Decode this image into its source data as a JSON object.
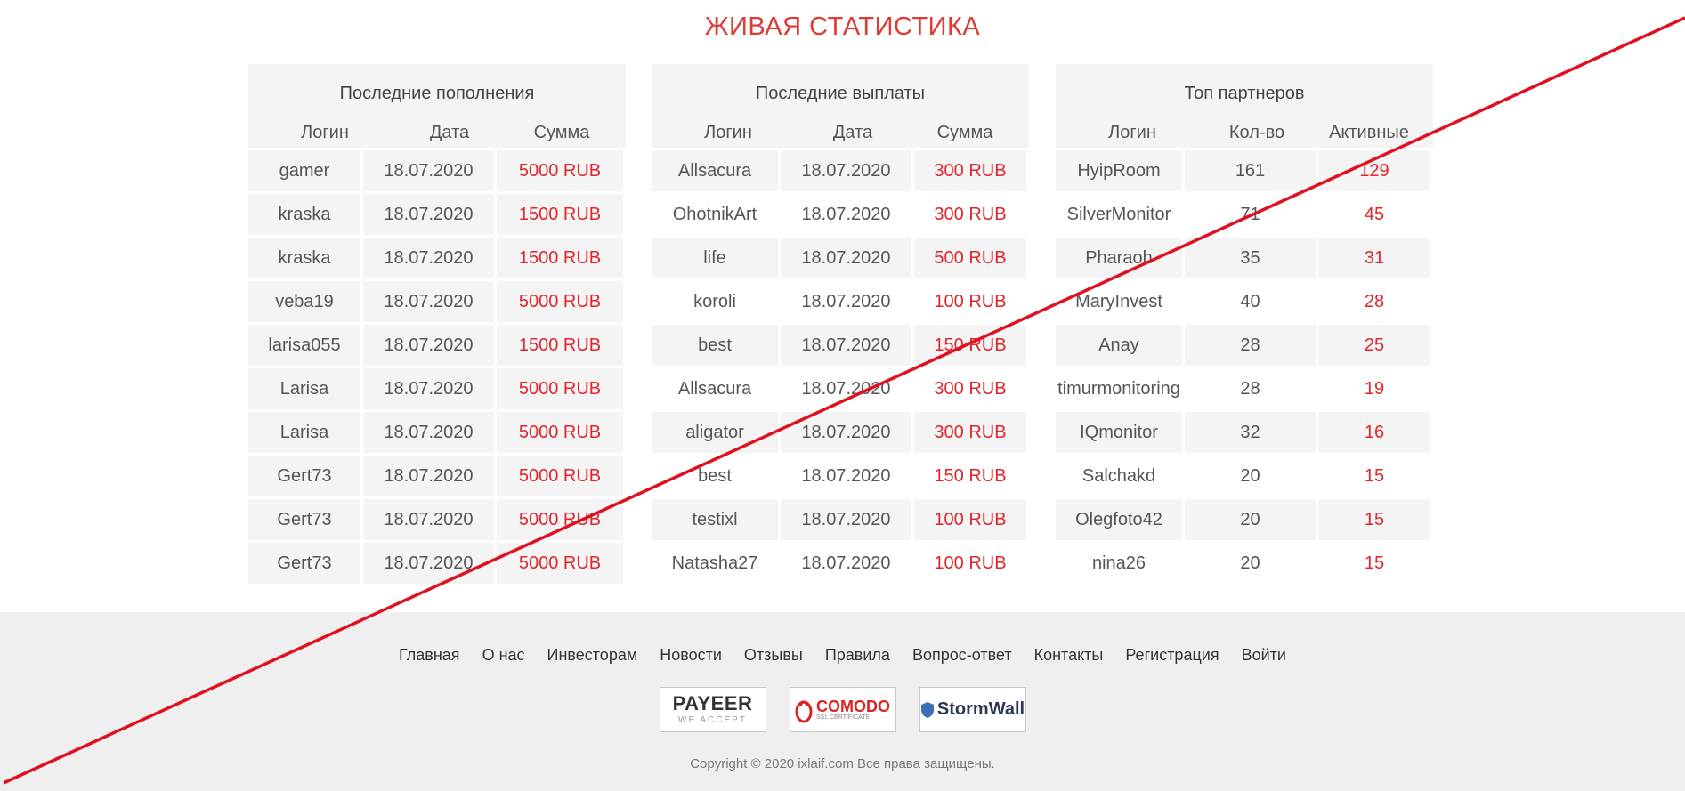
{
  "page_title": "ЖИВАЯ СТАТИСТИКА",
  "deposits": {
    "title": "Последние пополнения",
    "headers": [
      "Логин",
      "Дата",
      "Сумма"
    ],
    "rows": [
      [
        "gamer",
        "18.07.2020",
        "5000 RUB"
      ],
      [
        "kraska",
        "18.07.2020",
        "1500 RUB"
      ],
      [
        "kraska",
        "18.07.2020",
        "1500 RUB"
      ],
      [
        "veba19",
        "18.07.2020",
        "5000 RUB"
      ],
      [
        "larisa055",
        "18.07.2020",
        "1500 RUB"
      ],
      [
        "Larisa",
        "18.07.2020",
        "5000 RUB"
      ],
      [
        "Larisa",
        "18.07.2020",
        "5000 RUB"
      ],
      [
        "Gert73",
        "18.07.2020",
        "5000 RUB"
      ],
      [
        "Gert73",
        "18.07.2020",
        "5000 RUB"
      ],
      [
        "Gert73",
        "18.07.2020",
        "5000 RUB"
      ]
    ]
  },
  "payouts": {
    "title": "Последние выплаты",
    "headers": [
      "Логин",
      "Дата",
      "Сумма"
    ],
    "rows": [
      [
        "Allsacura",
        "18.07.2020",
        "300 RUB"
      ],
      [
        "OhotnikArt",
        "18.07.2020",
        "300 RUB"
      ],
      [
        "life",
        "18.07.2020",
        "500 RUB"
      ],
      [
        "koroli",
        "18.07.2020",
        "100 RUB"
      ],
      [
        "best",
        "18.07.2020",
        "150 RUB"
      ],
      [
        "Allsacura",
        "18.07.2020",
        "300 RUB"
      ],
      [
        "aligator",
        "18.07.2020",
        "300 RUB"
      ],
      [
        "best",
        "18.07.2020",
        "150 RUB"
      ],
      [
        "testixl",
        "18.07.2020",
        "100 RUB"
      ],
      [
        "Natasha27",
        "18.07.2020",
        "100 RUB"
      ]
    ]
  },
  "partners": {
    "title": "Топ партнеров",
    "headers": [
      "Логин",
      "Кол-во",
      "Активные"
    ],
    "rows": [
      [
        "HyipRoom",
        "161",
        "129"
      ],
      [
        "SilverMonitor",
        "71",
        "45"
      ],
      [
        "Pharaoh",
        "35",
        "31"
      ],
      [
        "MaryInvest",
        "40",
        "28"
      ],
      [
        "Anay",
        "28",
        "25"
      ],
      [
        "timurmonitoring",
        "28",
        "19"
      ],
      [
        "IQmonitor",
        "32",
        "16"
      ],
      [
        "Salchakd",
        "20",
        "15"
      ],
      [
        "Olegfoto42",
        "20",
        "15"
      ],
      [
        "nina26",
        "20",
        "15"
      ]
    ]
  },
  "footer": {
    "nav": [
      "Главная",
      "О нас",
      "Инвесторам",
      "Новости",
      "Отзывы",
      "Правила",
      "Вопрос-ответ",
      "Контакты",
      "Регистрация",
      "Войти"
    ],
    "badges": {
      "payeer_main": "PAYEER",
      "payeer_sub": "WE ACCEPT",
      "comodo_main": "COMODO",
      "comodo_sub": "SSL CERTIFICATE",
      "stormwall": "StormWall"
    },
    "copyright": "Copyright © 2020 ixlaif.com Все права защищены."
  },
  "colors": {
    "accent_red": "#e0262c",
    "title_red": "#e03a32",
    "row_bg": "#f4f4f5",
    "footer_bg": "#efefef"
  }
}
